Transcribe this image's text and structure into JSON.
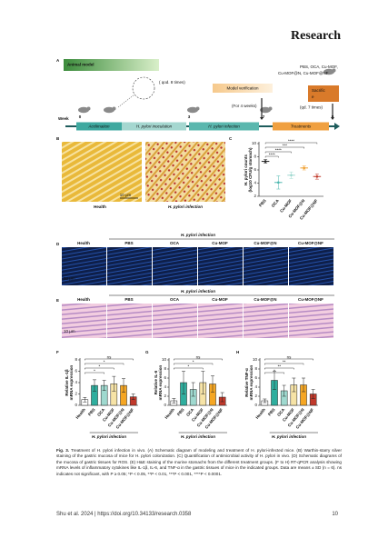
{
  "header": {
    "journal": "Research"
  },
  "figure": {
    "panel_a": {
      "label": "A",
      "title": "Animal model",
      "week_label": "Week",
      "weeks": [
        "0",
        "3",
        "7",
        "8"
      ],
      "stages": [
        "Acclimation",
        "H. pylori inoculation",
        "H. pylori infection",
        "Treatments"
      ],
      "inoculation_note": "( qod. 8 times)",
      "verification": "Model verification",
      "verification_note": "(For 4 weeks)",
      "groups": [
        "PBS, OCA, Cu-MOF,",
        "Cu-MOF@N, Cu-MOF@NF"
      ],
      "sacrifice": [
        "Sacrific",
        "e"
      ],
      "treatment_note": "(qd. 7 times)"
    },
    "panel_b": {
      "label": "B",
      "images": [
        "Health",
        "H. pylori infection"
      ],
      "scale": "10 μm"
    },
    "panel_d": {
      "label": "D",
      "group_header": "H. pylori infection",
      "columns": [
        "Health",
        "PBS",
        "OCA",
        "Cu-MOF",
        "Cu-MOF@N",
        "Cu-MOF@NF"
      ],
      "scale": "50 μm"
    },
    "panel_e": {
      "label": "E",
      "group_header": "H. pylori infection",
      "columns": [
        "Health",
        "PBS",
        "OCA",
        "Cu-MOF",
        "Cu-MOF@N",
        "Cu-MOF@NF"
      ],
      "scale": "10 μm"
    }
  },
  "chart_data": [
    {
      "type": "scatter",
      "label": "C",
      "ylabel": [
        "H. pylori counts",
        "(log10 CFU/g stomach)"
      ],
      "categories": [
        "PBS",
        "OCA",
        "Cu-MOF",
        "Cu-MOF@N",
        "Cu-MOF@NF"
      ],
      "values": [
        7.3,
        4.1,
        5.2,
        6.3,
        5.0
      ],
      "errors": [
        0.3,
        1.0,
        0.5,
        0.3,
        0.4
      ],
      "colors": [
        "#222222",
        "#4fb8b0",
        "#9ed8cf",
        "#f0a030",
        "#c0392b"
      ],
      "ylim": [
        2,
        10
      ],
      "yticks": [
        2,
        4,
        6,
        8,
        10
      ],
      "annotations": [
        "****",
        "***",
        "****",
        "****"
      ]
    },
    {
      "type": "bar",
      "label": "F",
      "ylabel": [
        "Relative IL-1β",
        "mRNA expression"
      ],
      "categories": [
        "Health",
        "PBS",
        "OCA",
        "Cu-MOF",
        "Cu-MOF@N",
        "Cu-MOF@NF"
      ],
      "values": [
        1.0,
        3.5,
        3.5,
        3.8,
        3.5,
        1.5
      ],
      "errors": [
        0.4,
        1.0,
        0.9,
        1.3,
        1.2,
        0.5
      ],
      "colors": [
        "#ffffff",
        "#2fae9e",
        "#9fd9cf",
        "#f6e3a6",
        "#f5a623",
        "#c0392b"
      ],
      "ylim": [
        0,
        8
      ],
      "yticks": [
        0,
        2,
        4,
        6,
        8
      ],
      "annotations": [
        "ns",
        "*",
        "*",
        "*"
      ],
      "group_label": "H. pylori infection"
    },
    {
      "type": "bar",
      "label": "G",
      "ylabel": [
        "Relative IL-6",
        "mRNA expression"
      ],
      "categories": [
        "Health",
        "PBS",
        "OCA",
        "Cu-MOF",
        "Cu-MOF@N",
        "Cu-MOF@NF"
      ],
      "values": [
        1.0,
        5.0,
        3.5,
        5.0,
        4.7,
        1.8
      ],
      "errors": [
        0.5,
        2.5,
        1.5,
        2.5,
        1.8,
        1.0
      ],
      "colors": [
        "#ffffff",
        "#2fae9e",
        "#9fd9cf",
        "#f6e3a6",
        "#f5a623",
        "#c0392b"
      ],
      "ylim": [
        0,
        10
      ],
      "yticks": [
        0,
        2,
        4,
        6,
        8,
        10
      ],
      "annotations": [
        "ns",
        "*",
        "*"
      ],
      "group_label": "H. pylori infection"
    },
    {
      "type": "bar",
      "label": "H",
      "ylabel": [
        "Relative TNF-α",
        "mRNA expression"
      ],
      "categories": [
        "Health",
        "PBS",
        "OCA",
        "Cu-MOF",
        "Cu-MOF@N",
        "Cu-MOF@NF"
      ],
      "values": [
        1.0,
        5.5,
        3.2,
        4.5,
        4.5,
        2.5
      ],
      "errors": [
        0.4,
        2.0,
        1.2,
        1.5,
        1.5,
        1.0
      ],
      "colors": [
        "#ffffff",
        "#2fae9e",
        "#9fd9cf",
        "#f6e3a6",
        "#f5a623",
        "#c0392b"
      ],
      "ylim": [
        0,
        10
      ],
      "yticks": [
        0,
        2,
        4,
        6,
        8,
        10
      ],
      "annotations": [
        "ns",
        "**",
        "**",
        "*"
      ],
      "group_label": "H. pylori infection"
    }
  ],
  "caption": {
    "label": "Fig. 3.",
    "text": "Treatment of H. pylori infection in vivo. (A) Schematic diagram of modeling and treatment of H. pylori-infected mice. (B) Warthin-starry silver staining of the gastric mucosa of mice for H. pylori colonization. (C) Quantification of antimicrobial activity of H. pylori in vivo. (D) Schematic diagrams of the mucosa of gastric tissues for ROS. (E) H&E staining of the murine stomachs from the different treatment groups. (F to H) RT-qPCR analysis showing mRNA levels of inflammatory cytokines like IL-1β, IL-6, and TNF-α in the gastric tissues of mice in the indicated groups. Data are means ± SD (n = 6). ns indicates not significant, with P ≥ 0.05; *P < 0.05, **P < 0.01, ***P < 0.001, ****P < 0.0001."
  },
  "footer": {
    "citation": "Shu et al. 2024 | https://doi.org/10.34133/research.0358",
    "page": "10"
  }
}
